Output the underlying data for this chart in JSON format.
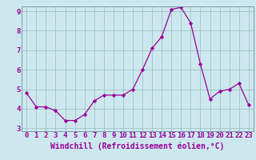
{
  "x": [
    0,
    1,
    2,
    3,
    4,
    5,
    6,
    7,
    8,
    9,
    10,
    11,
    12,
    13,
    14,
    15,
    16,
    17,
    18,
    19,
    20,
    21,
    22,
    23
  ],
  "y": [
    4.8,
    4.1,
    4.1,
    3.9,
    3.4,
    3.4,
    3.7,
    4.4,
    4.7,
    4.7,
    4.7,
    5.0,
    6.0,
    7.1,
    7.7,
    9.1,
    9.2,
    8.4,
    6.3,
    4.5,
    4.9,
    5.0,
    5.3,
    4.2
  ],
  "xlabel": "Windchill (Refroidissement éolien,°C)",
  "ylim": [
    3,
    9
  ],
  "xlim": [
    -0.5,
    23.5
  ],
  "yticks": [
    3,
    4,
    5,
    6,
    7,
    8,
    9
  ],
  "xticks": [
    0,
    1,
    2,
    3,
    4,
    5,
    6,
    7,
    8,
    9,
    10,
    11,
    12,
    13,
    14,
    15,
    16,
    17,
    18,
    19,
    20,
    21,
    22,
    23
  ],
  "line_color": "#990099",
  "marker": "D",
  "marker_size": 2.2,
  "background_color": "#cce8ee",
  "grid_color": "#99bbbb",
  "tick_label_color": "#990099",
  "xlabel_color": "#990099",
  "xlabel_fontsize": 7,
  "tick_fontsize": 6.5,
  "spine_color": "#7799aa"
}
